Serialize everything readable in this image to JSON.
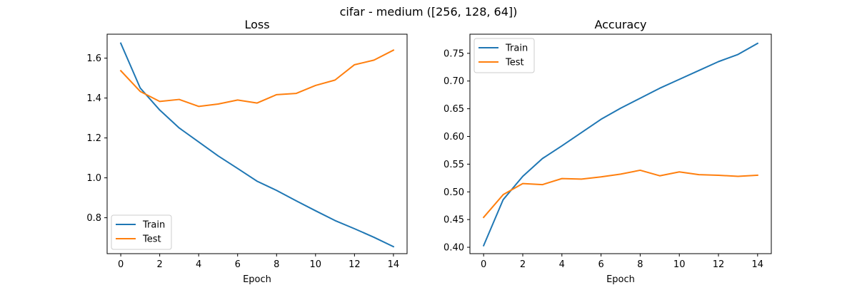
{
  "figure": {
    "suptitle": "cifar - medium ([256, 128, 64])"
  },
  "chart_data": [
    {
      "type": "line",
      "title": "Loss",
      "xlabel": "Epoch",
      "ylabel": "",
      "x": [
        0,
        1,
        2,
        3,
        4,
        5,
        6,
        7,
        8,
        9,
        10,
        11,
        12,
        13,
        14
      ],
      "xlim": [
        -0.7,
        14.7
      ],
      "ylim": [
        0.62,
        1.72
      ],
      "xticks": [
        0,
        2,
        4,
        6,
        8,
        10,
        12,
        14
      ],
      "xtick_labels": [
        "0",
        "2",
        "4",
        "6",
        "8",
        "10",
        "12",
        "14"
      ],
      "yticks": [
        0.8,
        1.0,
        1.2,
        1.4,
        1.6
      ],
      "ytick_labels": [
        "0.8",
        "1.0",
        "1.2",
        "1.4",
        "1.6"
      ],
      "grid": false,
      "legend_position": "lower-left",
      "series": [
        {
          "name": "Train",
          "color": "#1f77b4",
          "values": [
            1.675,
            1.45,
            1.34,
            1.25,
            1.18,
            1.11,
            1.047,
            0.983,
            0.937,
            0.885,
            0.835,
            0.786,
            0.745,
            0.702,
            0.655
          ]
        },
        {
          "name": "Test",
          "color": "#ff7f0e",
          "values": [
            1.537,
            1.433,
            1.383,
            1.393,
            1.358,
            1.37,
            1.39,
            1.375,
            1.417,
            1.423,
            1.463,
            1.49,
            1.567,
            1.59,
            1.64
          ]
        }
      ]
    },
    {
      "type": "line",
      "title": "Accuracy",
      "xlabel": "Epoch",
      "ylabel": "",
      "x": [
        0,
        1,
        2,
        3,
        4,
        5,
        6,
        7,
        8,
        9,
        10,
        11,
        12,
        13,
        14
      ],
      "xlim": [
        -0.7,
        14.7
      ],
      "ylim": [
        0.3885,
        0.7845
      ],
      "xticks": [
        0,
        2,
        4,
        6,
        8,
        10,
        12,
        14
      ],
      "xtick_labels": [
        "0",
        "2",
        "4",
        "6",
        "8",
        "10",
        "12",
        "14"
      ],
      "yticks": [
        0.4,
        0.45,
        0.5,
        0.55,
        0.6,
        0.65,
        0.7,
        0.75
      ],
      "ytick_labels": [
        "0.40",
        "0.45",
        "0.50",
        "0.55",
        "0.60",
        "0.65",
        "0.70",
        "0.75"
      ],
      "grid": false,
      "legend_position": "upper-left",
      "series": [
        {
          "name": "Train",
          "color": "#1f77b4",
          "values": [
            0.403,
            0.486,
            0.528,
            0.56,
            0.583,
            0.607,
            0.631,
            0.651,
            0.669,
            0.687,
            0.703,
            0.719,
            0.735,
            0.748,
            0.768
          ]
        },
        {
          "name": "Test",
          "color": "#ff7f0e",
          "values": [
            0.454,
            0.495,
            0.515,
            0.513,
            0.524,
            0.523,
            0.527,
            0.532,
            0.539,
            0.529,
            0.536,
            0.531,
            0.53,
            0.528,
            0.53
          ]
        }
      ]
    }
  ]
}
